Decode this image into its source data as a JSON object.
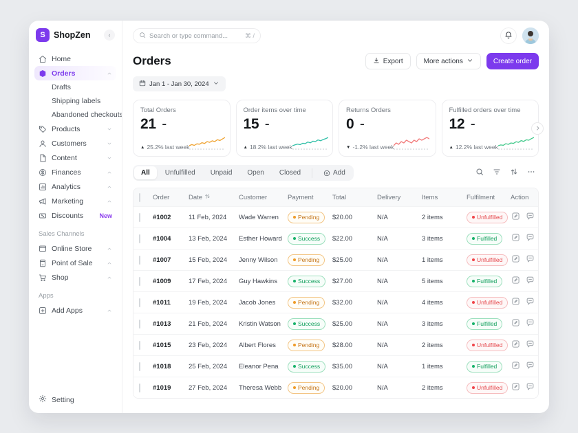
{
  "app": {
    "name": "ShopZen",
    "logo_letter": "S"
  },
  "topbar": {
    "search_placeholder": "Search or type command...",
    "search_shortcut": "⌘ /"
  },
  "header": {
    "title": "Orders",
    "export_label": "Export",
    "more_actions_label": "More actions",
    "create_order_label": "Create order",
    "date_range": "Jan 1 - Jan 30, 2024"
  },
  "colors": {
    "accent_purple": "#7c3aed",
    "badge_orange": "#ef9b28",
    "badge_green": "#17b26a",
    "badge_red": "#f04449"
  },
  "sidebar": {
    "sections": [
      {
        "label": "",
        "items": [
          {
            "label": "Home",
            "icon": "home"
          },
          {
            "label": "Orders",
            "icon": "orders",
            "active": true,
            "chevron": "up",
            "children": [
              "Drafts",
              "Shipping labels",
              "Abandoned checkouts"
            ]
          },
          {
            "label": "Products",
            "icon": "tag",
            "chevron": "down"
          },
          {
            "label": "Customers",
            "icon": "user",
            "chevron": "down"
          },
          {
            "label": "Content",
            "icon": "file",
            "chevron": "down"
          },
          {
            "label": "Finances",
            "icon": "coin",
            "chevron": "up"
          },
          {
            "label": "Analytics",
            "icon": "analytics",
            "chevron": "up"
          },
          {
            "label": "Marketing",
            "icon": "megaphone",
            "chevron": "up"
          },
          {
            "label": "Discounts",
            "icon": "discount",
            "badge": "New"
          }
        ]
      },
      {
        "label": "Sales Channels",
        "items": [
          {
            "label": "Online Store",
            "icon": "store",
            "chevron": "up"
          },
          {
            "label": "Point of Sale",
            "icon": "pos",
            "chevron": "up"
          },
          {
            "label": "Shop",
            "icon": "cart",
            "chevron": "up"
          }
        ]
      },
      {
        "label": "Apps",
        "items": [
          {
            "label": "Add Apps",
            "icon": "plus-square",
            "chevron": "up"
          }
        ]
      }
    ],
    "footer": {
      "label": "Setting",
      "icon": "gear"
    }
  },
  "chart_data": {
    "type": "line",
    "title": "Order stat sparklines",
    "cards": [
      {
        "label": "Total Orders",
        "value": "21",
        "suffix": "-",
        "trend": "up",
        "delta": "25.2% last week",
        "color": "#f0a330",
        "sparkline": [
          2,
          2.6,
          2.2,
          3,
          2.8,
          3.6,
          3.2,
          4.2,
          3.8,
          4.6,
          4.2,
          5.2,
          4.8,
          5.6,
          6.4
        ]
      },
      {
        "label": "Order items over time",
        "value": "15",
        "suffix": "-",
        "trend": "up",
        "delta": "18.2% last week",
        "color": "#2fbfa7",
        "sparkline": [
          2,
          2.4,
          2.8,
          2.5,
          3.2,
          3,
          3.8,
          3.4,
          4.2,
          4,
          4.8,
          4.4,
          5,
          5.4,
          6
        ]
      },
      {
        "label": "Returns Orders",
        "value": "0",
        "suffix": "-",
        "trend": "down",
        "delta": "-1.2% last week",
        "color": "#f27d7d",
        "sparkline": [
          3,
          3.2,
          3.1,
          3.3,
          3.2,
          3.4,
          3.3,
          3.2,
          3.4,
          3.3,
          3.5,
          3.4,
          3.5,
          3.6,
          3.5
        ]
      },
      {
        "label": "Fulfilled orders over time",
        "value": "12",
        "suffix": "-",
        "trend": "up",
        "delta": "12.2% last week",
        "color": "#42c98b",
        "sparkline": [
          1.8,
          2.2,
          2,
          2.8,
          2.5,
          3.2,
          3,
          3.8,
          3.5,
          4.4,
          4,
          4.8,
          4.6,
          5.4,
          6
        ]
      }
    ]
  },
  "tabs": {
    "items": [
      {
        "label": "All",
        "active": true
      },
      {
        "label": "Unfulfilled"
      },
      {
        "label": "Unpaid"
      },
      {
        "label": "Open"
      },
      {
        "label": "Closed"
      }
    ],
    "add_label": "Add"
  },
  "table": {
    "columns": [
      "Order",
      "Date",
      "Customer",
      "Payment",
      "Total",
      "Delivery",
      "Items",
      "Fulfilment",
      "Action"
    ],
    "rows": [
      {
        "order": "#1002",
        "date": "11 Feb, 2024",
        "customer": "Wade Warren",
        "payment": "Pending",
        "total": "$20.00",
        "delivery": "N/A",
        "items": "2 items",
        "fulfilment": "Unfulfilled"
      },
      {
        "order": "#1004",
        "date": "13 Feb, 2024",
        "customer": "Esther Howard",
        "payment": "Success",
        "total": "$22.00",
        "delivery": "N/A",
        "items": "3 items",
        "fulfilment": "Fulfilled"
      },
      {
        "order": "#1007",
        "date": "15 Feb, 2024",
        "customer": "Jenny Wilson",
        "payment": "Pending",
        "total": "$25.00",
        "delivery": "N/A",
        "items": "1 items",
        "fulfilment": "Unfulfilled"
      },
      {
        "order": "#1009",
        "date": "17 Feb, 2024",
        "customer": "Guy Hawkins",
        "payment": "Success",
        "total": "$27.00",
        "delivery": "N/A",
        "items": "5 items",
        "fulfilment": "Fulfilled"
      },
      {
        "order": "#1011",
        "date": "19 Feb, 2024",
        "customer": "Jacob Jones",
        "payment": "Pending",
        "total": "$32.00",
        "delivery": "N/A",
        "items": "4 items",
        "fulfilment": "Unfulfilled"
      },
      {
        "order": "#1013",
        "date": "21 Feb, 2024",
        "customer": "Kristin Watson",
        "payment": "Success",
        "total": "$25.00",
        "delivery": "N/A",
        "items": "3 items",
        "fulfilment": "Fulfilled"
      },
      {
        "order": "#1015",
        "date": "23 Feb, 2024",
        "customer": "Albert Flores",
        "payment": "Pending",
        "total": "$28.00",
        "delivery": "N/A",
        "items": "2 items",
        "fulfilment": "Unfulfilled"
      },
      {
        "order": "#1018",
        "date": "25 Feb, 2024",
        "customer": "Eleanor Pena",
        "payment": "Success",
        "total": "$35.00",
        "delivery": "N/A",
        "items": "1 items",
        "fulfilment": "Fulfilled"
      },
      {
        "order": "#1019",
        "date": "27 Feb, 2024",
        "customer": "Theresa Webb",
        "payment": "Pending",
        "total": "$20.00",
        "delivery": "N/A",
        "items": "2 items",
        "fulfilment": "Unfulfilled"
      }
    ]
  }
}
